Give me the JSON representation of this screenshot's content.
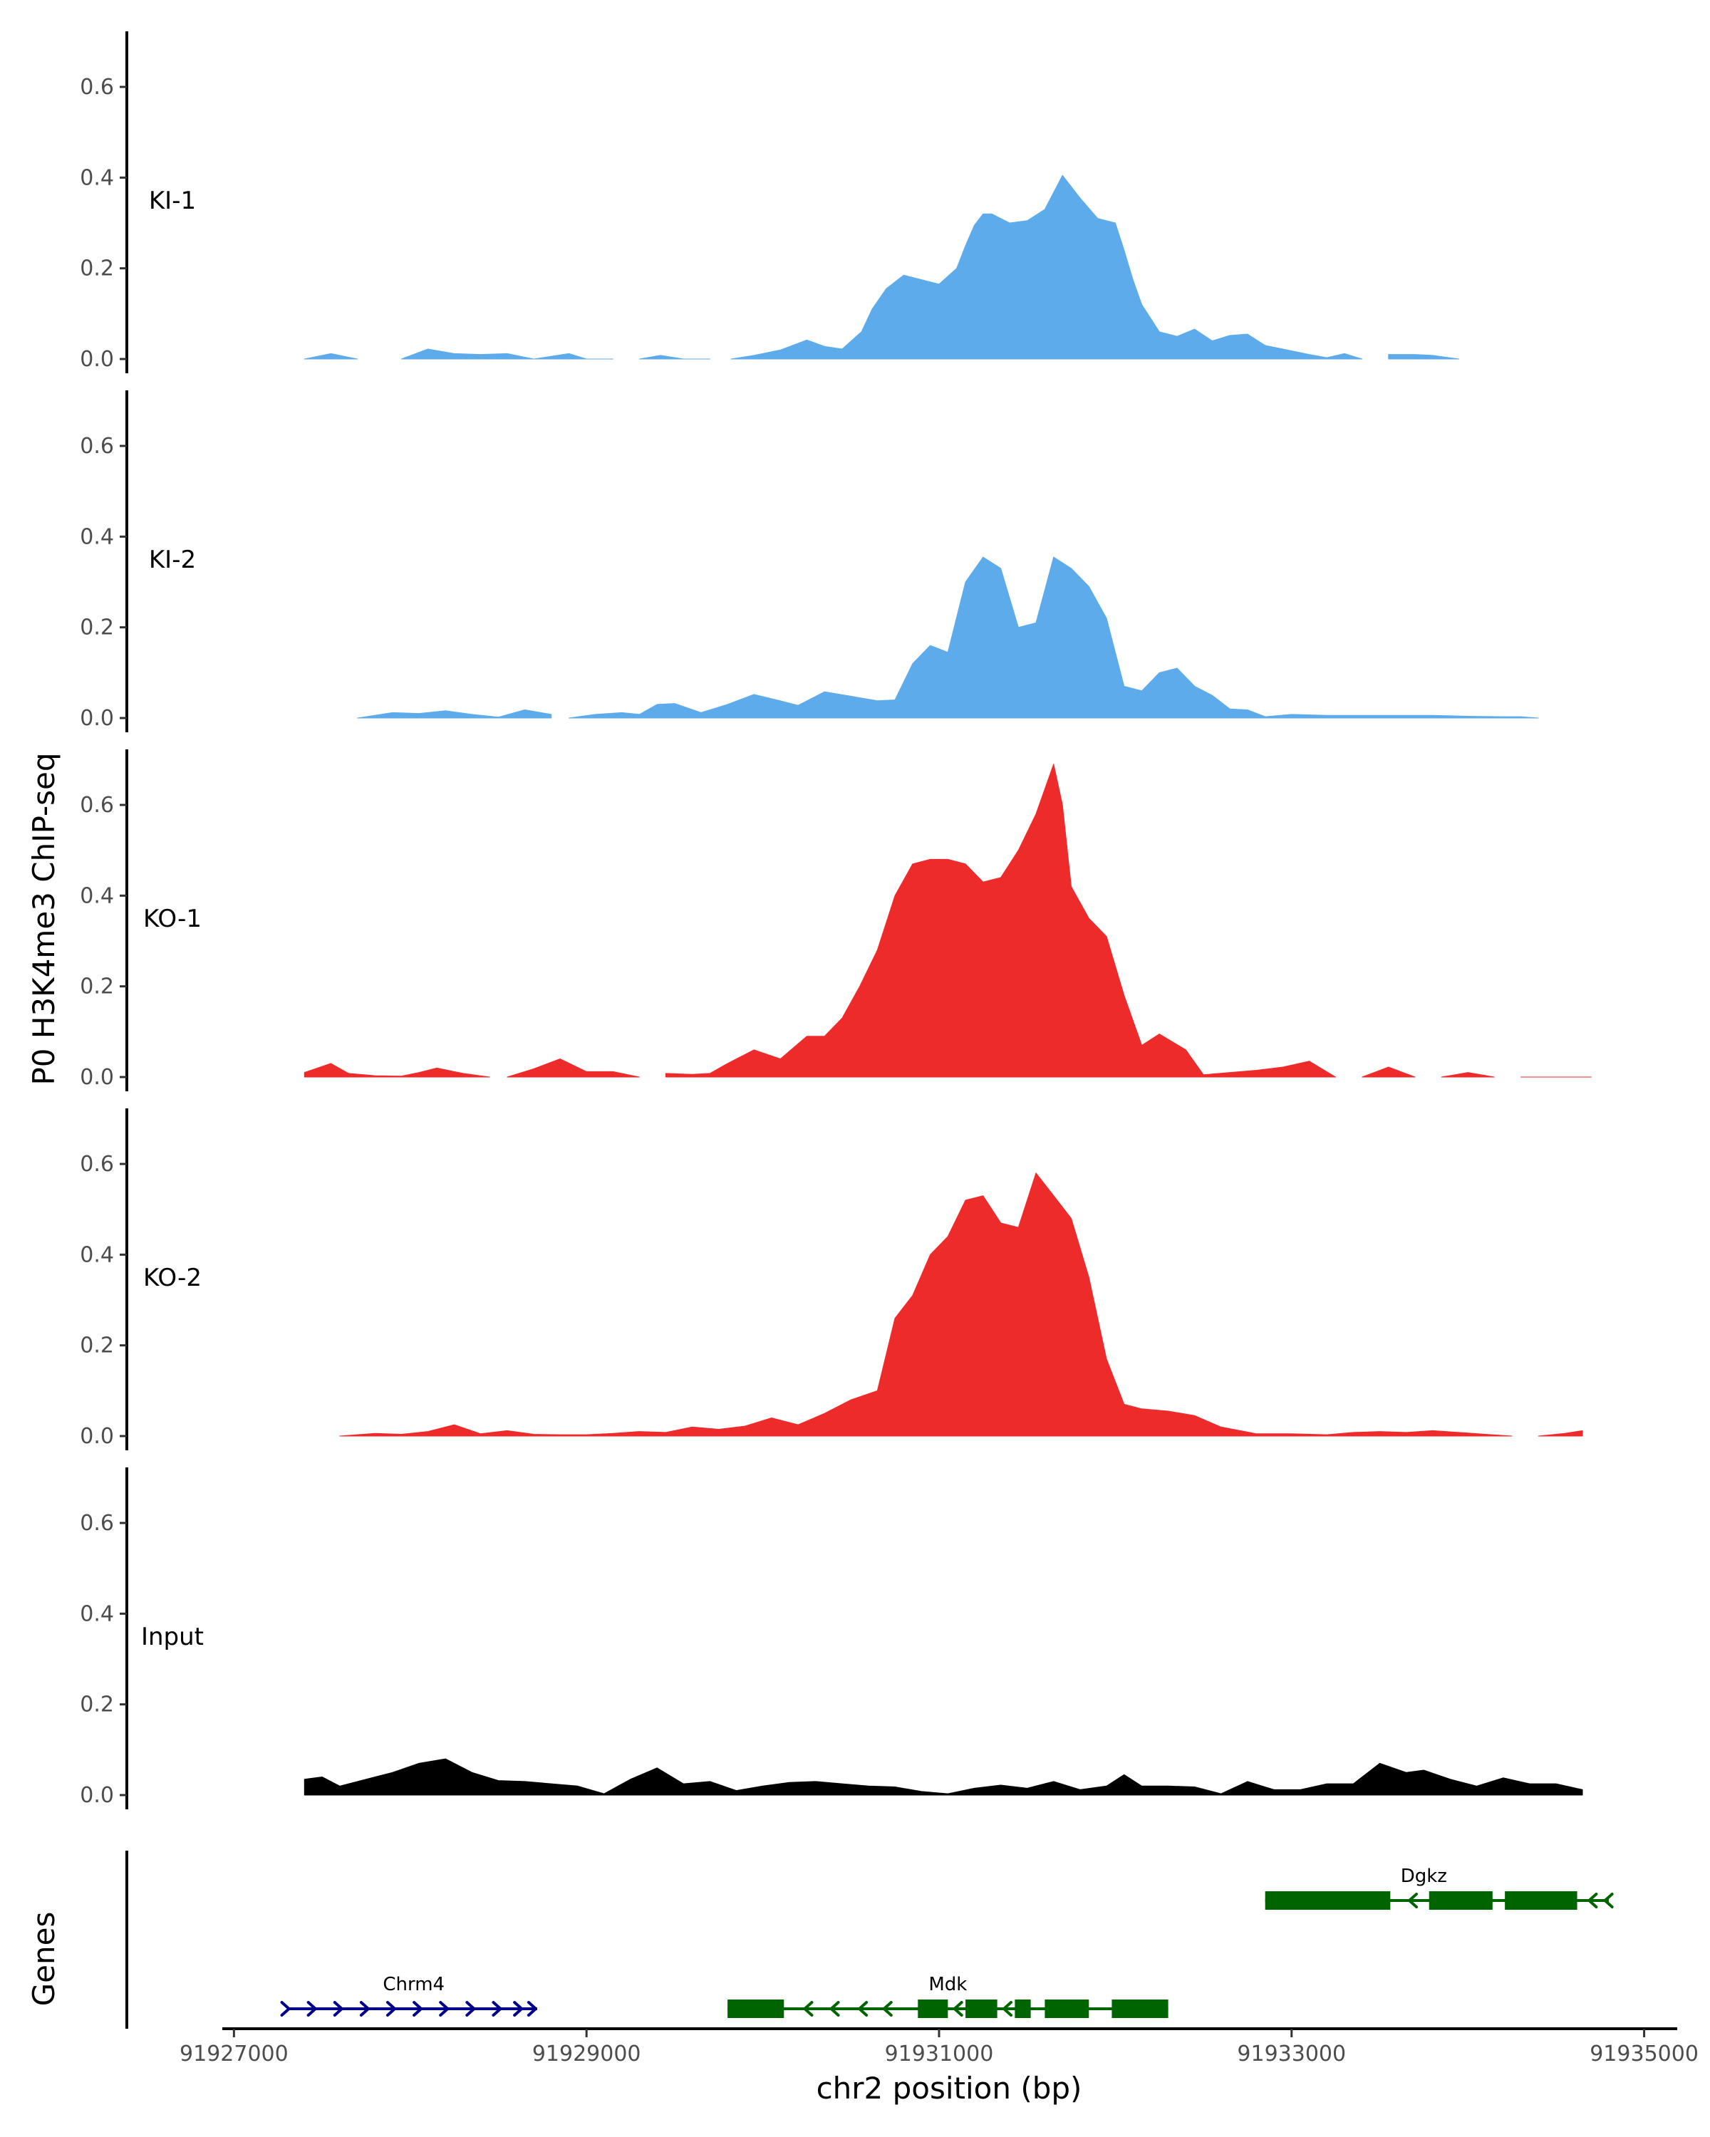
{
  "chart_data": {
    "type": "area",
    "ylabel": "P0 H3K4me3 ChIP-seq",
    "xlabel": "chr2 position (bp)",
    "genes_label": "Genes",
    "ylim": [
      0,
      0.72
    ],
    "yticks": [
      0.0,
      0.2,
      0.4,
      0.6
    ],
    "ytick_labels": [
      "0.0",
      "0.2",
      "0.4",
      "0.6"
    ],
    "xlim": [
      91926950,
      91935220
    ],
    "xticks": [
      91927000,
      91929000,
      91931000,
      91933000,
      91935000
    ],
    "xtick_labels": [
      "91927000",
      "91929000",
      "91931000",
      "91933000",
      "91935000"
    ],
    "colors": {
      "KI": "#5dabeb",
      "KO": "#ee2b2b",
      "Input": "#000000",
      "gene_minus": "#006400",
      "gene_plus": "#00008b"
    },
    "tracks": [
      {
        "name": "KI-1",
        "color": "#5dabeb",
        "x": [
          91927400,
          91927550,
          91927700,
          91927950,
          91928100,
          91928250,
          91928400,
          91928550,
          91928700,
          91928900,
          91929000,
          91929150,
          91929300,
          91929420,
          91929550,
          91929700,
          91929820,
          91929950,
          91930100,
          91930250,
          91930350,
          91930450,
          91930560,
          91930620,
          91930700,
          91930800,
          91930900,
          91931000,
          91931100,
          91931150,
          91931200,
          91931250,
          91931300,
          91931400,
          91931500,
          91931600,
          91931700,
          91931800,
          91931900,
          91932000,
          91932050,
          91932100,
          91932150,
          91932250,
          91932350,
          91932450,
          91932550,
          91932650,
          91932750,
          91932850,
          91933000,
          91933100,
          91933200,
          91933300,
          91933400,
          91933550,
          91933700,
          91933800,
          91933950
        ],
        "y": [
          0,
          0.012,
          0,
          0,
          0.022,
          0.012,
          0.01,
          0.012,
          0,
          0.012,
          0,
          0,
          0,
          0.008,
          0,
          0,
          0,
          0.008,
          0.02,
          0.042,
          0.028,
          0.022,
          0.06,
          0.11,
          0.155,
          0.185,
          0.175,
          0.165,
          0.2,
          0.25,
          0.295,
          0.32,
          0.32,
          0.3,
          0.305,
          0.33,
          0.405,
          0.355,
          0.31,
          0.3,
          0.24,
          0.175,
          0.12,
          0.06,
          0.05,
          0.066,
          0.04,
          0.052,
          0.055,
          0.03,
          0.018,
          0.01,
          0.003,
          0.012,
          0,
          0.01,
          0.01,
          0.008,
          0
        ],
        "gaps": [
          [
            91927700,
            91927950
          ],
          [
            91929150,
            91929300
          ],
          [
            91929700,
            91929820
          ],
          [
            91933400,
            91933550
          ]
        ]
      },
      {
        "name": "KI-2",
        "color": "#5dabeb",
        "x": [
          91927700,
          91927900,
          91928050,
          91928200,
          91928350,
          91928500,
          91928650,
          91928800,
          91928900,
          91929050,
          91929200,
          91929300,
          91929400,
          91929500,
          91929650,
          91929800,
          91929950,
          91930100,
          91930200,
          91930350,
          91930500,
          91930650,
          91930750,
          91930850,
          91930950,
          91931050,
          91931150,
          91931250,
          91931350,
          91931450,
          91931550,
          91931650,
          91931750,
          91931850,
          91931950,
          91932050,
          91932150,
          91932250,
          91932350,
          91932450,
          91932550,
          91932650,
          91932750,
          91932850,
          91933000,
          91933200,
          91933400,
          91933600,
          91933800,
          91934000,
          91934200,
          91934300,
          91934400
        ],
        "y": [
          0,
          0.012,
          0.01,
          0.016,
          0.008,
          0.002,
          0.018,
          0.008,
          0,
          0.008,
          0.012,
          0.008,
          0.03,
          0.032,
          0.012,
          0.03,
          0.052,
          0.038,
          0.028,
          0.058,
          0.048,
          0.038,
          0.04,
          0.12,
          0.16,
          0.145,
          0.3,
          0.355,
          0.33,
          0.2,
          0.21,
          0.355,
          0.33,
          0.29,
          0.22,
          0.07,
          0.06,
          0.1,
          0.11,
          0.07,
          0.05,
          0.02,
          0.018,
          0.003,
          0.008,
          0.006,
          0.006,
          0.006,
          0.006,
          0.004,
          0.003,
          0.003,
          0
        ],
        "gaps": [
          [
            91928800,
            91928900
          ]
        ]
      },
      {
        "name": "KO-1",
        "color": "#ee2b2b",
        "x": [
          91927400,
          91927550,
          91927650,
          91927800,
          91927950,
          91928050,
          91928150,
          91928300,
          91928450,
          91928550,
          91928700,
          91928850,
          91929000,
          91929150,
          91929300,
          91929450,
          91929600,
          91929700,
          91929800,
          91929950,
          91930100,
          91930250,
          91930350,
          91930450,
          91930550,
          91930650,
          91930750,
          91930850,
          91930950,
          91931050,
          91931150,
          91931250,
          91931350,
          91931450,
          91931550,
          91931650,
          91931700,
          91931750,
          91931850,
          91931950,
          91932050,
          91932150,
          91932250,
          91932400,
          91932500,
          91932650,
          91932800,
          91932950,
          91933100,
          91933250,
          91933400,
          91933550,
          91933700,
          91933850,
          91934000,
          91934150,
          91934300,
          91934500,
          91934700
        ],
        "y": [
          0.01,
          0.03,
          0.008,
          0.003,
          0.002,
          0.01,
          0.02,
          0.008,
          0,
          0,
          0.018,
          0.04,
          0.012,
          0.012,
          0,
          0.008,
          0.006,
          0.008,
          0.03,
          0.06,
          0.04,
          0.09,
          0.09,
          0.13,
          0.2,
          0.28,
          0.4,
          0.47,
          0.48,
          0.48,
          0.47,
          0.43,
          0.44,
          0.5,
          0.58,
          0.69,
          0.6,
          0.42,
          0.35,
          0.31,
          0.18,
          0.07,
          0.095,
          0.06,
          0.005,
          0.01,
          0.015,
          0.022,
          0.035,
          0,
          0,
          0.022,
          0,
          0,
          0.01,
          0,
          0,
          0,
          0
        ],
        "gaps": [
          [
            91928450,
            91928700
          ],
          [
            91929300,
            91929450
          ],
          [
            91933250,
            91933400
          ],
          [
            91933700,
            91933850
          ],
          [
            91934150,
            91934300
          ]
        ]
      },
      {
        "name": "KO-2",
        "color": "#ee2b2b",
        "x": [
          91927600,
          91927800,
          91927950,
          91928100,
          91928250,
          91928400,
          91928550,
          91928700,
          91928850,
          91929000,
          91929150,
          91929300,
          91929450,
          91929600,
          91929750,
          91929900,
          91930050,
          91930200,
          91930350,
          91930500,
          91930650,
          91930750,
          91930850,
          91930950,
          91931050,
          91931150,
          91931250,
          91931350,
          91931450,
          91931550,
          91931650,
          91931750,
          91931850,
          91931950,
          91932050,
          91932150,
          91932300,
          91932450,
          91932600,
          91932800,
          91933000,
          91933200,
          91933350,
          91933500,
          91933650,
          91933800,
          91933950,
          91934100,
          91934250,
          91934400,
          91934550,
          91934650
        ],
        "y": [
          0,
          0.006,
          0.004,
          0.01,
          0.025,
          0.005,
          0.012,
          0.004,
          0.003,
          0.003,
          0.006,
          0.01,
          0.008,
          0.02,
          0.015,
          0.022,
          0.04,
          0.025,
          0.05,
          0.08,
          0.1,
          0.26,
          0.31,
          0.4,
          0.44,
          0.52,
          0.53,
          0.47,
          0.46,
          0.58,
          0.53,
          0.48,
          0.35,
          0.17,
          0.07,
          0.06,
          0.055,
          0.045,
          0.02,
          0.005,
          0.005,
          0.003,
          0.008,
          0.01,
          0.008,
          0.012,
          0.008,
          0.004,
          0,
          0,
          0.006,
          0.012
        ],
        "gaps": [
          [
            91934250,
            91934400
          ]
        ]
      },
      {
        "name": "Input",
        "color": "#000000",
        "x": [
          91927400,
          91927500,
          91927600,
          91927750,
          91927900,
          91928050,
          91928200,
          91928350,
          91928500,
          91928650,
          91928800,
          91928950,
          91929100,
          91929250,
          91929400,
          91929550,
          91929700,
          91929850,
          91930000,
          91930150,
          91930300,
          91930450,
          91930600,
          91930750,
          91930900,
          91931050,
          91931200,
          91931350,
          91931500,
          91931650,
          91931800,
          91931950,
          91932050,
          91932150,
          91932300,
          91932450,
          91932600,
          91932750,
          91932900,
          91933050,
          91933200,
          91933350,
          91933500,
          91933650,
          91933750,
          91933900,
          91934050,
          91934200,
          91934350,
          91934500,
          91934650
        ],
        "y": [
          0.035,
          0.04,
          0.02,
          0.035,
          0.05,
          0.07,
          0.08,
          0.05,
          0.032,
          0.03,
          0.025,
          0.02,
          0.003,
          0.035,
          0.06,
          0.025,
          0.03,
          0.01,
          0.02,
          0.028,
          0.03,
          0.025,
          0.02,
          0.018,
          0.008,
          0.003,
          0.015,
          0.022,
          0.015,
          0.03,
          0.012,
          0.02,
          0.045,
          0.02,
          0.02,
          0.018,
          0.003,
          0.03,
          0.012,
          0.012,
          0.025,
          0.025,
          0.07,
          0.05,
          0.055,
          0.035,
          0.02,
          0.038,
          0.025,
          0.025,
          0.012
        ],
        "gaps": []
      }
    ],
    "genes": [
      {
        "name": "Chrm4",
        "strand": "+",
        "row": 2,
        "color": "#00008b",
        "start": 91927300,
        "end": 91928720,
        "exons": [],
        "label_pos": 91928020,
        "arrows": [
          91927300,
          91927450,
          91927600,
          91927750,
          91927900,
          91928050,
          91928200,
          91928350,
          91928500,
          91928620,
          91928700
        ]
      },
      {
        "name": "Mdk",
        "strand": "-",
        "row": 2,
        "color": "#006400",
        "start": 91929800,
        "end": 91932300,
        "label_pos": 91931050,
        "exons": [
          [
            91929800,
            91930120
          ],
          [
            91930880,
            91931050
          ],
          [
            91931150,
            91931330
          ],
          [
            91931430,
            91931520
          ],
          [
            91931600,
            91931850
          ],
          [
            91931980,
            91932300
          ]
        ],
        "arrows": [
          91930250,
          91930400,
          91930560,
          91930700,
          91931100,
          91931380
        ]
      },
      {
        "name": "Dgkz",
        "strand": "-",
        "row": 1,
        "color": "#006400",
        "start": 91932850,
        "end": 91934800,
        "label_pos": 91933750,
        "exons": [
          [
            91932850,
            91933560
          ],
          [
            91933780,
            91934140
          ],
          [
            91934210,
            91934620
          ]
        ],
        "arrows": [
          91933680,
          91934700,
          91934790
        ]
      }
    ]
  }
}
